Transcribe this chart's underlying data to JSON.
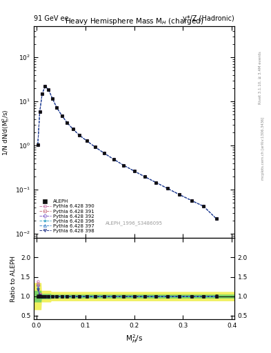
{
  "title_top_left": "91 GeV ee",
  "title_top_right": "γ*/Z (Hadronic)",
  "plot_title": "Heavy Hemisphere Mass M$_{H}$ (charged)",
  "ylabel_main": "1/N dN/d(M$^{2}_{h}$/s)",
  "ylabel_ratio": "Ratio to ALEPH",
  "xlabel": "M$^{2}_{H}$/s",
  "right_label_top": "Rivet 3.1.10, ≥ 3.4M events",
  "right_label_bottom": "mcplots.cern.ch [arXiv:1306.3436]",
  "ref_label": "ALEPH_1996_S3486095",
  "x_data": [
    0.003,
    0.007,
    0.012,
    0.018,
    0.025,
    0.033,
    0.042,
    0.052,
    0.063,
    0.075,
    0.088,
    0.103,
    0.12,
    0.138,
    0.158,
    0.178,
    0.2,
    0.222,
    0.245,
    0.268,
    0.292,
    0.317,
    0.342,
    0.368
  ],
  "aleph_y": [
    1.05,
    5.8,
    15.0,
    22.0,
    18.5,
    11.5,
    7.2,
    4.8,
    3.3,
    2.35,
    1.72,
    1.28,
    0.93,
    0.68,
    0.49,
    0.36,
    0.265,
    0.196,
    0.145,
    0.107,
    0.078,
    0.057,
    0.042,
    0.022
  ],
  "aleph_yerr_rel": [
    0.05,
    0.04,
    0.03,
    0.025,
    0.025,
    0.025,
    0.025,
    0.025,
    0.025,
    0.025,
    0.025,
    0.025,
    0.025,
    0.025,
    0.025,
    0.025,
    0.025,
    0.025,
    0.025,
    0.025,
    0.025,
    0.025,
    0.025,
    0.04
  ],
  "mc_lines": [
    {
      "label": "Pythia 6.428 390",
      "color": "#cc77aa",
      "marker": "o",
      "linestyle": "--",
      "mfc": "none"
    },
    {
      "label": "Pythia 6.428 391",
      "color": "#cc7788",
      "marker": "s",
      "linestyle": "--",
      "mfc": "none"
    },
    {
      "label": "Pythia 6.428 392",
      "color": "#8866cc",
      "marker": "D",
      "linestyle": "--",
      "mfc": "none"
    },
    {
      "label": "Pythia 6.428 396",
      "color": "#44aacc",
      "marker": "*",
      "linestyle": "--",
      "mfc": "none"
    },
    {
      "label": "Pythia 6.428 397",
      "color": "#4488cc",
      "marker": "^",
      "linestyle": "--",
      "mfc": "none"
    },
    {
      "label": "Pythia 6.428 398",
      "color": "#223388",
      "marker": "v",
      "linestyle": "--",
      "mfc": "none"
    }
  ],
  "mc_scale_factors": [
    1.0,
    1.0,
    1.0,
    1.0,
    1.0,
    1.0
  ],
  "ratio_vals": [
    [
      1.38,
      1.05,
      1.0,
      1.0,
      1.0,
      1.0,
      1.0,
      1.0,
      1.0,
      1.0,
      1.0,
      1.0,
      1.0,
      1.0,
      1.0,
      1.0,
      1.0,
      1.0,
      1.0,
      1.0,
      1.0,
      1.0,
      1.0,
      1.0
    ],
    [
      1.32,
      1.04,
      1.0,
      1.0,
      1.0,
      1.0,
      1.0,
      1.0,
      1.0,
      1.0,
      1.0,
      1.0,
      1.0,
      1.0,
      1.0,
      1.0,
      1.0,
      1.0,
      1.0,
      1.0,
      1.0,
      1.0,
      1.0,
      1.0
    ],
    [
      1.28,
      1.03,
      1.0,
      1.0,
      1.0,
      1.0,
      1.0,
      1.0,
      1.0,
      1.0,
      1.0,
      1.0,
      1.0,
      1.0,
      1.0,
      1.0,
      1.0,
      1.0,
      1.0,
      1.0,
      1.0,
      1.0,
      1.0,
      1.0
    ],
    [
      1.0,
      1.0,
      1.0,
      1.0,
      1.0,
      1.0,
      1.0,
      1.0,
      1.0,
      1.0,
      1.0,
      1.0,
      1.0,
      1.0,
      1.0,
      1.0,
      1.0,
      1.0,
      1.0,
      1.0,
      1.0,
      1.0,
      1.0,
      1.0
    ],
    [
      1.22,
      1.02,
      1.0,
      1.0,
      1.0,
      1.0,
      1.0,
      1.0,
      1.0,
      1.0,
      1.0,
      1.0,
      1.0,
      1.0,
      1.0,
      1.0,
      1.0,
      1.0,
      1.0,
      1.0,
      1.0,
      1.0,
      1.0,
      1.0
    ],
    [
      1.18,
      1.02,
      1.0,
      1.0,
      1.0,
      1.0,
      1.0,
      1.0,
      1.0,
      1.0,
      1.0,
      1.0,
      1.0,
      1.0,
      1.0,
      1.0,
      1.0,
      1.0,
      1.0,
      1.0,
      1.0,
      1.0,
      1.0,
      1.0
    ]
  ],
  "ylim_main": [
    0.008,
    500
  ],
  "ylim_ratio": [
    0.4,
    2.5
  ],
  "xlim": [
    -0.005,
    0.405
  ],
  "bg_color": "#ffffff",
  "green_band_inner": 0.05,
  "yellow_band_outer": 0.12,
  "green_color": "#66cc66",
  "yellow_color": "#eeee44"
}
